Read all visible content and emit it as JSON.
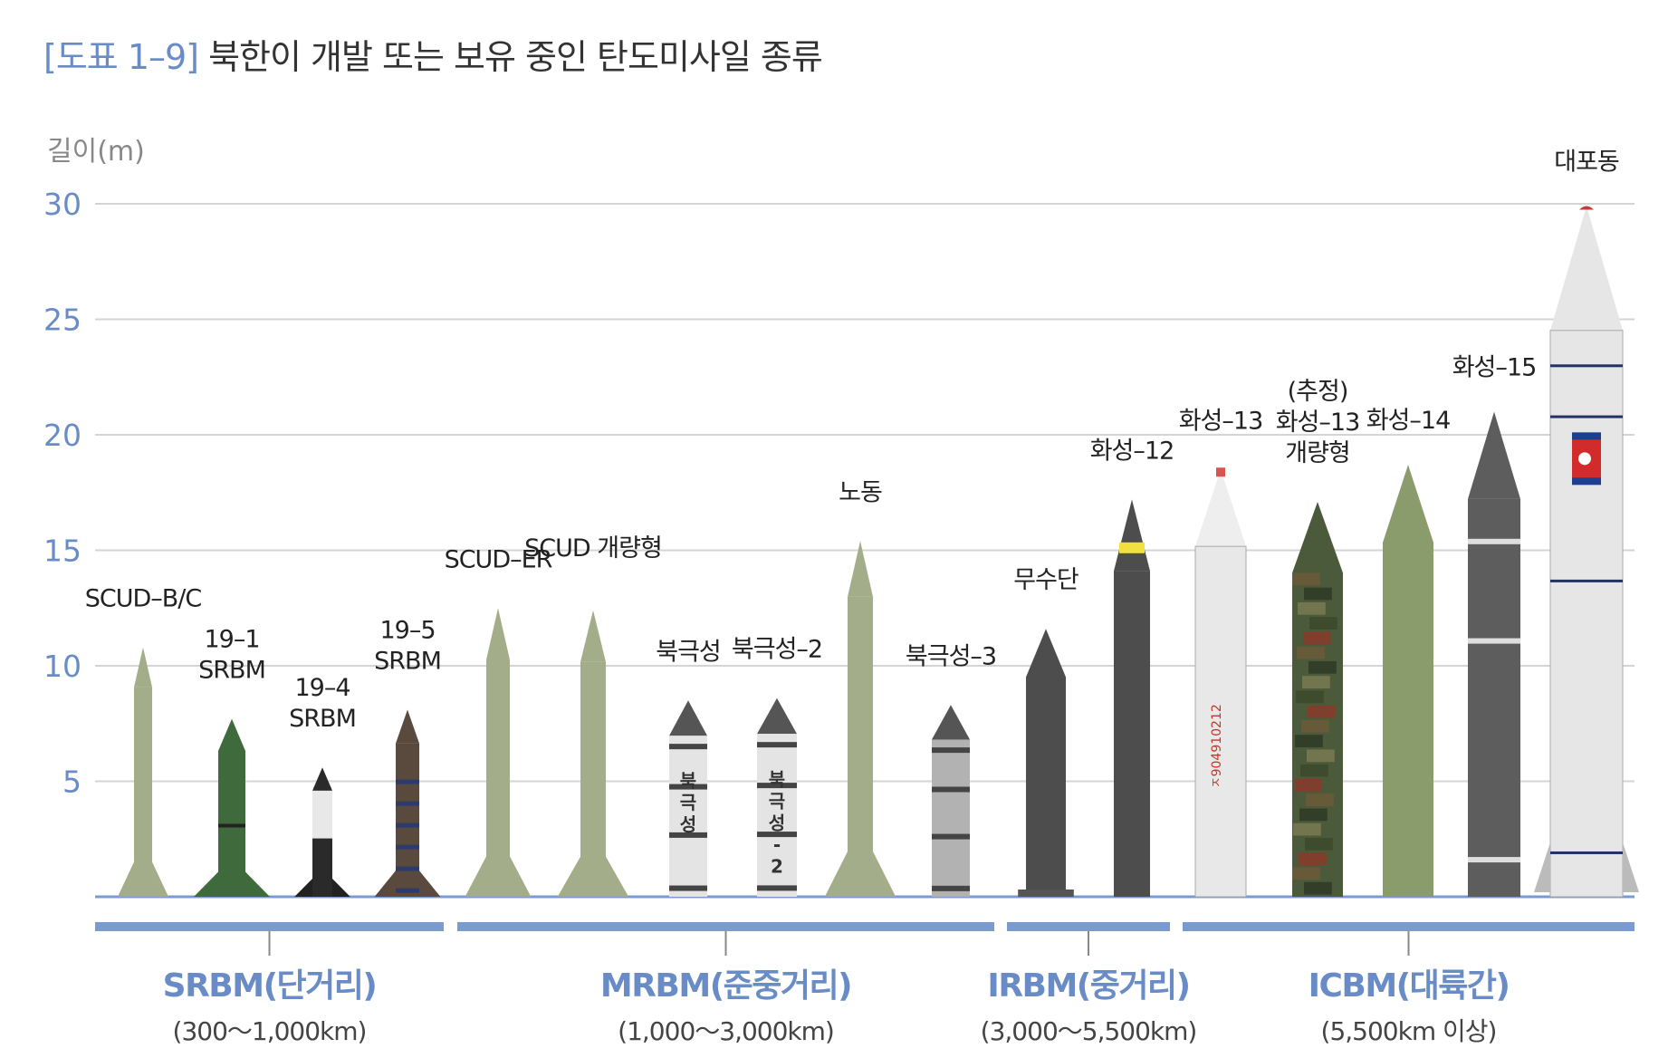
{
  "title": {
    "tag": "[도표 1–9]",
    "text": " 북한이 개발 또는 보유 중인 탄도미사일 종류"
  },
  "chart_data": {
    "type": "bar",
    "ylabel": "길이(m)",
    "ylim": [
      0,
      30
    ],
    "yticks": [
      5,
      10,
      15,
      20,
      25,
      30
    ],
    "grid": true,
    "missiles": [
      {
        "label": [
          "SCUD–B/C"
        ],
        "value": 10.8,
        "color": "#a4ad8a",
        "style": "scud"
      },
      {
        "label": [
          "19–1",
          "SRBM"
        ],
        "value": 7.7,
        "color": "#3f6b3c",
        "style": "kn23"
      },
      {
        "label": [
          "19–4",
          "SRBM"
        ],
        "value": 5.6,
        "color": "#2a2a2a",
        "style": "kn24"
      },
      {
        "label": [
          "19–5",
          "SRBM"
        ],
        "value": 8.1,
        "color": "#5a4a3e",
        "style": "kn25"
      },
      {
        "label": [
          "SCUD–ER"
        ],
        "value": 12.5,
        "color": "#a4ad8a",
        "style": "scud"
      },
      {
        "label": [
          "SCUD 개량형"
        ],
        "value": 12.4,
        "color": "#a4ad8a",
        "style": "scud"
      },
      {
        "label": [
          "북극성"
        ],
        "value": 8.5,
        "color": "#e4e4e4",
        "style": "pk",
        "marking": "북극성"
      },
      {
        "label": [
          "북극성–2"
        ],
        "value": 8.6,
        "color": "#e4e4e4",
        "style": "pk",
        "marking": "북극성-2"
      },
      {
        "label": [
          "노동"
        ],
        "value": 15.4,
        "color": "#a4ad8a",
        "style": "scud"
      },
      {
        "label": [
          "북극성–3"
        ],
        "value": 8.3,
        "color": "#b2b2b2",
        "style": "pk3"
      },
      {
        "label": [
          "무수단"
        ],
        "value": 11.6,
        "color": "#4d4d4d",
        "style": "musudan"
      },
      {
        "label": [
          "화성–12"
        ],
        "value": 17.2,
        "color": "#4d4d4d",
        "style": "hs12"
      },
      {
        "label": [
          "화성–13"
        ],
        "value": 18.5,
        "color": "#e8e8e8",
        "style": "hs13",
        "marking": "ㅈ904910212"
      },
      {
        "label": [
          "(추정)",
          "화성–13",
          "개량형"
        ],
        "value": 17.1,
        "color": "#4a5a3a",
        "style": "camo"
      },
      {
        "label": [
          "화성–14"
        ],
        "value": 18.7,
        "color": "#8a9b6c",
        "style": "hs14"
      },
      {
        "label": [
          "화성–15"
        ],
        "value": 21.0,
        "color": "#5d5d5d",
        "style": "hs15"
      },
      {
        "label": [
          "대포동"
        ],
        "value": 29.9,
        "color": "#e6e6e6",
        "style": "tpd"
      }
    ],
    "groups": [
      {
        "name": "SRBM(단거리)",
        "range": "(300～1,000km)"
      },
      {
        "name": "MRBM(준중거리)",
        "range": "(1,000～3,000km)"
      },
      {
        "name": "IRBM(중거리)",
        "range": "(3,000～5,500km)"
      },
      {
        "name": "ICBM(대륙간)",
        "range": "(5,500km 이상)"
      }
    ]
  }
}
